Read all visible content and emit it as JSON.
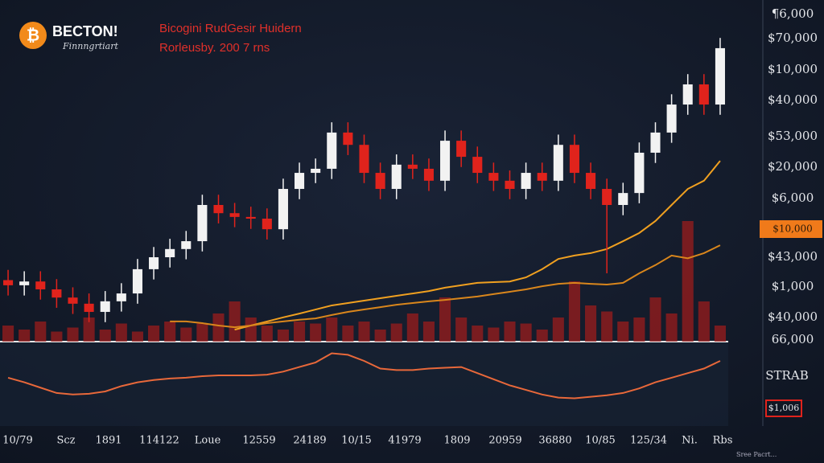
{
  "chart_data": {
    "type": "candlestick",
    "logo_text": "BECTON!",
    "logo_subtitle": "Finnngrtiart",
    "title": "Bicogini RudGesir Huidern",
    "subtitle": "Rorleusby. 200 7 rns",
    "ylim": [
      0,
      100
    ],
    "up_color": "#f2f2f2",
    "down_color": "#e0231c",
    "open": [
      18.0,
      16.5,
      17.6,
      15.3,
      12.9,
      11.1,
      8.7,
      11.8,
      14.1,
      21.2,
      24.7,
      27.1,
      29.4,
      40.0,
      37.6,
      36.5,
      36.0,
      32.9,
      44.7,
      49.4,
      50.6,
      61.2,
      57.6,
      49.4,
      44.7,
      51.8,
      50.6,
      47.1,
      58.8,
      54.1,
      49.4,
      47.1,
      44.7,
      49.4,
      47.1,
      57.6,
      49.4,
      44.7,
      40.0,
      43.5,
      55.3,
      61.2,
      69.4,
      75.3,
      69.4
    ],
    "high": [
      21.0,
      20.6,
      20.6,
      18.3,
      15.9,
      14.1,
      14.8,
      17.1,
      24.2,
      27.7,
      30.1,
      32.4,
      43.0,
      43.0,
      40.6,
      39.5,
      39.0,
      47.7,
      52.4,
      53.6,
      64.2,
      64.2,
      60.6,
      52.4,
      54.8,
      54.8,
      53.6,
      61.8,
      61.8,
      57.1,
      52.4,
      50.1,
      52.4,
      52.4,
      60.6,
      60.6,
      52.4,
      47.7,
      46.5,
      58.3,
      64.2,
      72.4,
      78.3,
      78.3,
      88.9
    ],
    "low": [
      13.5,
      13.5,
      12.3,
      9.9,
      8.1,
      5.7,
      5.7,
      8.8,
      11.1,
      18.2,
      21.7,
      24.1,
      26.4,
      34.6,
      33.5,
      33.0,
      29.9,
      29.9,
      41.7,
      46.4,
      47.6,
      54.6,
      46.4,
      41.7,
      41.7,
      47.6,
      44.1,
      44.1,
      51.1,
      46.4,
      44.1,
      41.7,
      41.7,
      44.1,
      44.1,
      46.4,
      41.7,
      20.0,
      37.0,
      40.5,
      52.3,
      58.2,
      66.4,
      66.4,
      66.4
    ],
    "close": [
      16.5,
      17.6,
      15.3,
      12.9,
      11.1,
      8.7,
      11.8,
      14.1,
      21.2,
      24.7,
      27.1,
      29.4,
      40.0,
      37.6,
      36.5,
      36.0,
      32.9,
      44.7,
      49.4,
      50.6,
      61.2,
      57.6,
      49.4,
      44.7,
      51.8,
      50.6,
      47.1,
      58.8,
      54.1,
      49.4,
      47.1,
      44.7,
      49.4,
      47.1,
      57.6,
      49.4,
      44.7,
      40.0,
      43.5,
      55.3,
      61.2,
      69.4,
      75.3,
      69.4,
      85.9
    ],
    "lines": [
      {
        "color": "#f0a020",
        "values": [
          null,
          null,
          null,
          null,
          null,
          null,
          null,
          null,
          null,
          null,
          null,
          null,
          null,
          null,
          3.5,
          4.7,
          5.9,
          7.1,
          8.2,
          9.4,
          10.6,
          11.3,
          12.0,
          12.7,
          13.4,
          14.1,
          14.8,
          15.8,
          16.5,
          17.2,
          17.4,
          17.6,
          18.8,
          21.2,
          24.2,
          25.2,
          25.9,
          27.1,
          29.4,
          31.8,
          35.3,
          40.0,
          44.7,
          47.1,
          52.9
        ]
      },
      {
        "color": "#d9861c",
        "values": [
          null,
          null,
          null,
          null,
          null,
          null,
          null,
          null,
          null,
          null,
          5.9,
          5.9,
          5.4,
          4.7,
          4.2,
          4.7,
          5.4,
          5.9,
          6.4,
          6.8,
          7.8,
          8.7,
          9.4,
          10.1,
          10.8,
          11.3,
          11.8,
          12.2,
          12.7,
          13.2,
          13.9,
          14.6,
          15.3,
          16.2,
          16.9,
          17.2,
          16.9,
          16.7,
          17.2,
          20.0,
          22.4,
          25.2,
          24.4,
          25.9,
          28.2
        ]
      }
    ],
    "volume": [
      8,
      6,
      10,
      5,
      7,
      12,
      6,
      9,
      5,
      8,
      10,
      7,
      9,
      14,
      20,
      12,
      8,
      6,
      10,
      9,
      12,
      8,
      10,
      6,
      9,
      14,
      10,
      22,
      12,
      8,
      7,
      10,
      9,
      6,
      12,
      30,
      18,
      15,
      10,
      12,
      22,
      14,
      60,
      20,
      8
    ],
    "vlim": [
      0,
      60
    ],
    "volume_color": "#9b1c1c",
    "oscillator": {
      "color": "#e8683a",
      "ylim": [
        0,
        100
      ],
      "values": [
        58,
        52,
        45,
        38,
        36,
        37,
        40,
        47,
        52,
        55,
        57,
        58,
        60,
        61,
        61,
        61,
        62,
        66,
        72,
        78,
        90,
        88,
        80,
        70,
        68,
        68,
        70,
        71,
        72,
        64,
        56,
        48,
        42,
        36,
        32,
        31,
        33,
        35,
        38,
        44,
        52,
        58,
        64,
        70,
        80
      ]
    },
    "y_axis_labels": [
      "¶6,000",
      "$70,000",
      "$10,000",
      "$40,000",
      "$53,000",
      "$20,000",
      "$6,000",
      "$10,000",
      "$43,000",
      "$1,000",
      "$40,000",
      "66,000",
      "STRAB",
      "$1,006"
    ],
    "x_axis_labels": [
      "10/79",
      "Scz",
      "1891",
      "114122",
      "Loue",
      "12559",
      "24189",
      "10/15",
      "41979",
      "1809",
      "20959",
      "36880",
      "10/85",
      "125/34",
      "Ni.",
      "Rbs"
    ],
    "footnote": "Sree Pacrt..."
  }
}
